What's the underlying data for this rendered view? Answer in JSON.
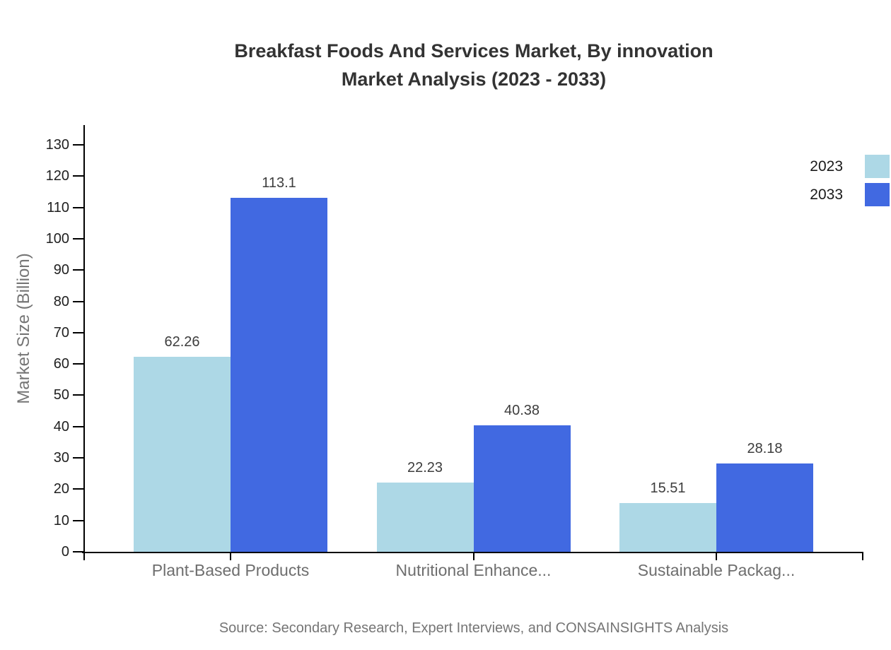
{
  "chart_data": {
    "type": "bar",
    "title": "Breakfast Foods And Services Market, By innovation Market Analysis (2023 - 2033)",
    "title_lines": [
      "Breakfast Foods And Services Market, By innovation",
      "Market Analysis (2023 - 2033)"
    ],
    "categories": [
      "Plant-Based Products",
      "Nutritional Enhance...",
      "Sustainable Packag..."
    ],
    "series": [
      {
        "name": "2023",
        "color": "#ADD8E6",
        "values": [
          62.26,
          22.23,
          15.51
        ]
      },
      {
        "name": "2033",
        "color": "#4169E1",
        "values": [
          113.1,
          40.38,
          28.18
        ]
      }
    ],
    "value_labels": [
      "62.26",
      "113.1",
      "22.23",
      "40.38",
      "15.51",
      "28.18"
    ],
    "ylabel": "Market Size (Billion)",
    "xlabel": "",
    "ylim": [
      0,
      130
    ],
    "ytick_step": 10,
    "grid": false,
    "legend_position": "top-right",
    "axis_color": "#000000"
  },
  "source_note": "Source: Secondary Research, Expert Interviews, and CONSAINSIGHTS Analysis"
}
